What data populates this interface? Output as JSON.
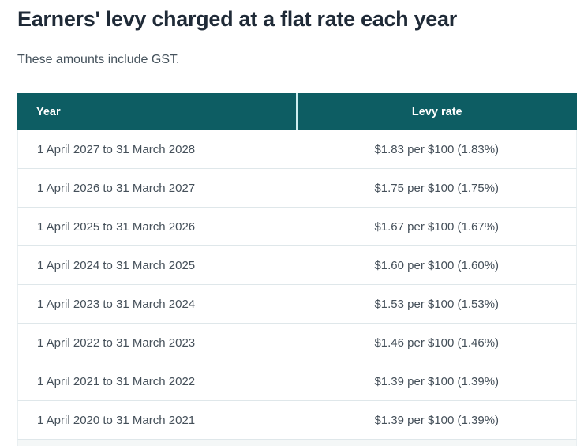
{
  "page": {
    "title": "Earners' levy charged at a flat rate each year",
    "subtitle": "These amounts include GST."
  },
  "table": {
    "columns": [
      "Year",
      "Levy rate"
    ],
    "rows": [
      {
        "year": "1 April 2027 to 31 March 2028",
        "rate": "$1.83 per $100 (1.83%)"
      },
      {
        "year": "1 April 2026 to 31 March 2027",
        "rate": "$1.75 per $100 (1.75%)"
      },
      {
        "year": "1 April 2025 to 31 March 2026",
        "rate": "$1.67 per $100 (1.67%)"
      },
      {
        "year": "1 April 2024 to 31 March 2025",
        "rate": "$1.60 per $100 (1.60%)"
      },
      {
        "year": "1 April 2023 to 31 March 2024",
        "rate": "$1.53 per $100 (1.53%)"
      },
      {
        "year": "1 April 2022 to 31 March 2023",
        "rate": "$1.46 per $100 (1.46%)"
      },
      {
        "year": "1 April 2021 to 31 March 2022",
        "rate": "$1.39 per $100 (1.39%)"
      },
      {
        "year": "1 April 2020 to 31 March 2021",
        "rate": "$1.39 per $100 (1.39%)"
      }
    ]
  },
  "colors": {
    "header_background": "#0d5d63",
    "header_text": "#ffffff",
    "header_divider": "#cdeef0",
    "heading_text": "#1f2a37",
    "body_text": "#45505a",
    "row_separator": "#dfe7ea"
  }
}
